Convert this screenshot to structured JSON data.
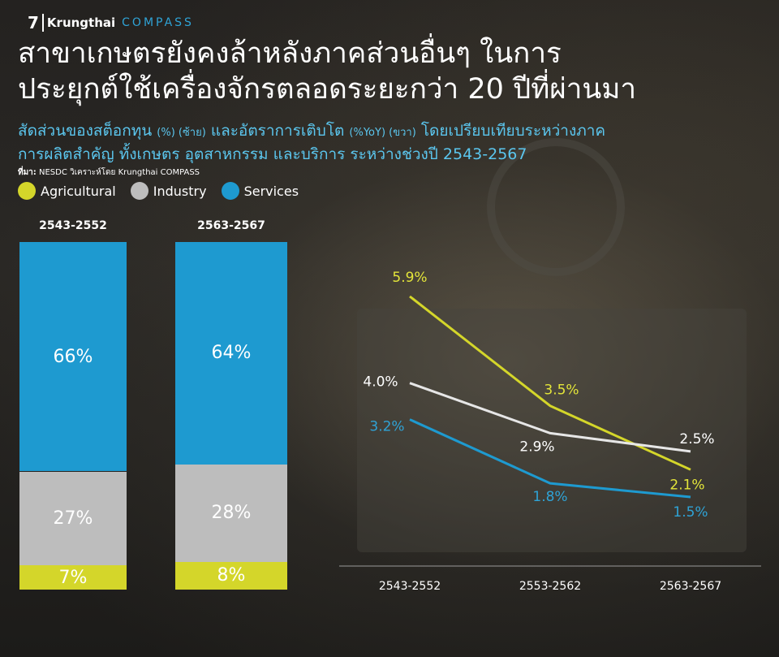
{
  "brand": {
    "page_number": "7",
    "name": "Krungthai",
    "product": "COMPASS"
  },
  "title_line1": "สาขาเกษตรยังคงล้าหลังภาคส่วนอื่นๆ ในการ",
  "title_line2": "ประยุกต์ใช้เครื่องจักรตลอดระยะกว่า 20 ปีที่ผ่านมา",
  "subtitle": {
    "part1": "สัดส่วนของสต็อกทุน ",
    "part2": "(%) (ซ้าย)",
    "part3": " และอัตราการเติบโต ",
    "part4": "(%YoY) (ขวา)",
    "part5": " โดยเปรียบเทียบระหว่างภาค",
    "line2": "การผลิตสำคัญ ทั้งเกษตร อุตสาหกรรม และบริการ ระหว่างช่วงปี 2543-2567"
  },
  "source": {
    "label": "ที่มา:",
    "text": " NESDC วิเคราะห์โดย Krungthai COMPASS"
  },
  "colors": {
    "agricultural": "#d4d62a",
    "industry": "#bdbdbd",
    "services": "#1e9ad0",
    "industry_line": "#e6e6e6"
  },
  "legend": [
    {
      "name": "Agricultural",
      "color": "#d4d62a"
    },
    {
      "name": "Industry",
      "color": "#bdbdbd"
    },
    {
      "name": "Services",
      "color": "#1e9ad0"
    }
  ],
  "chart_data": [
    {
      "type": "bar",
      "stacked": true,
      "unit": "%",
      "categories": [
        "2543-2552",
        "2563-2567"
      ],
      "series": [
        {
          "name": "Agricultural",
          "values": [
            7,
            8
          ]
        },
        {
          "name": "Industry",
          "values": [
            27,
            28
          ]
        },
        {
          "name": "Services",
          "values": [
            66,
            64
          ]
        }
      ],
      "labels": {
        "2543-2552": {
          "Services": "66%",
          "Industry": "27%",
          "Agricultural": "7%"
        },
        "2563-2567": {
          "Services": "64%",
          "Industry": "28%",
          "Agricultural": "8%"
        }
      }
    },
    {
      "type": "line",
      "unit": "%YoY",
      "categories": [
        "2543-2552",
        "2553-2562",
        "2563-2567"
      ],
      "series": [
        {
          "name": "Agricultural",
          "values": [
            5.9,
            3.5,
            2.1
          ],
          "labels": [
            "5.9%",
            "3.5%",
            "2.1%"
          ]
        },
        {
          "name": "Industry",
          "values": [
            4.0,
            2.9,
            2.5
          ],
          "labels": [
            "4.0%",
            "2.9%",
            "2.5%"
          ]
        },
        {
          "name": "Services",
          "values": [
            3.2,
            1.8,
            1.5
          ],
          "labels": [
            "3.2%",
            "1.8%",
            "1.5%"
          ]
        }
      ],
      "grid": false,
      "legend": "top-left"
    }
  ]
}
